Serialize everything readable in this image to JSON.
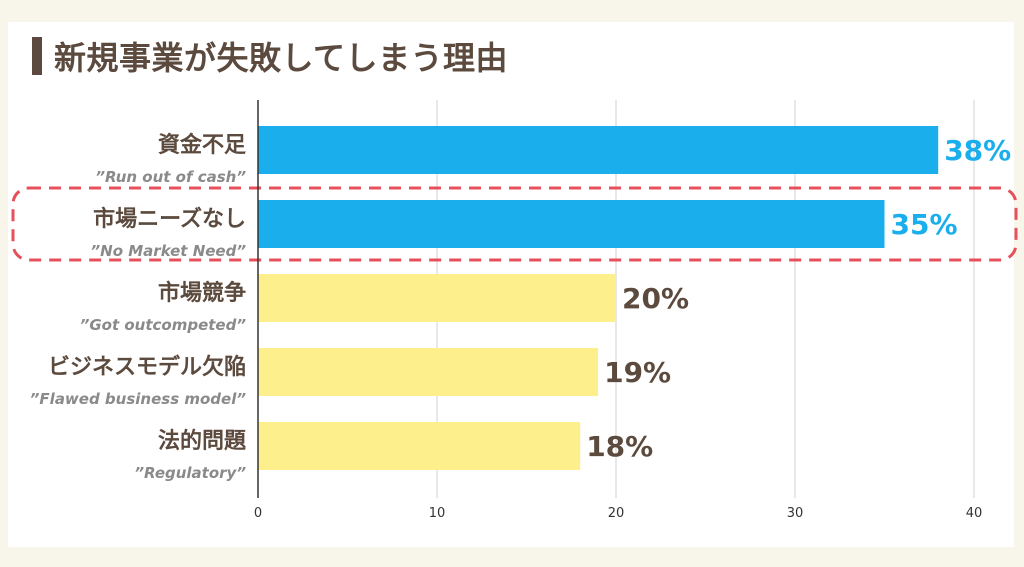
{
  "title": "新規事業が失敗してしまう理由",
  "colors": {
    "highlight_bar": "#1aaeec",
    "normal_bar": "#fdf08c",
    "highlight_label": "#1aaeec",
    "normal_label": "#5b4a3d",
    "dashed_box": "#e6505a"
  },
  "chart_data": {
    "type": "bar",
    "orientation": "horizontal",
    "categories": [
      "資金不足",
      "市場ニーズなし",
      "市場競争",
      "ビジネスモデル欠陥",
      "法的問題"
    ],
    "subtitles": [
      "”Run out of cash”",
      "”No Market Need”",
      "”Got outcompeted”",
      "”Flawed business model”",
      "”Regulatory”"
    ],
    "values": [
      38,
      35,
      20,
      19,
      18
    ],
    "value_labels": [
      "38%",
      "35%",
      "20%",
      "19%",
      "18%"
    ],
    "highlighted": [
      true,
      true,
      false,
      false,
      false
    ],
    "xlim": [
      0,
      40
    ],
    "xticks": [
      0,
      10,
      20,
      30,
      40
    ],
    "grid": true,
    "annotation": "dashed box around 市場ニーズなし"
  }
}
